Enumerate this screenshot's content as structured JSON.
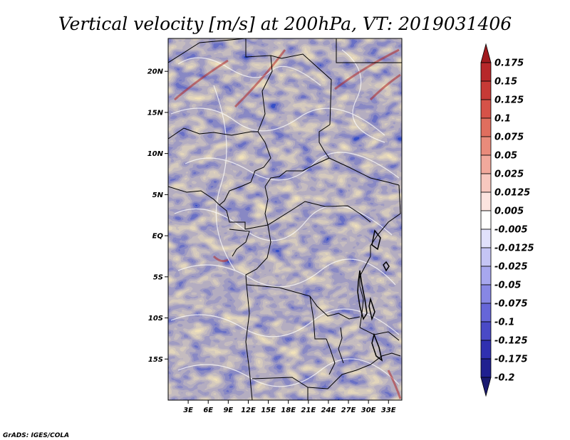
{
  "chart_data": {
    "type": "heatmap",
    "title": "Vertical velocity [m/s] at 200hPa, VT: 2019031406",
    "variable": "Vertical velocity",
    "units": "m/s",
    "level": "200hPa",
    "valid_time": "2019031406",
    "xlabel": "",
    "ylabel": "",
    "xlim": [
      0,
      35
    ],
    "ylim": [
      -20,
      24
    ],
    "x_ticks": [
      {
        "value": 3,
        "label": "3E"
      },
      {
        "value": 6,
        "label": "6E"
      },
      {
        "value": 9,
        "label": "9E"
      },
      {
        "value": 12,
        "label": "12E"
      },
      {
        "value": 15,
        "label": "15E"
      },
      {
        "value": 18,
        "label": "18E"
      },
      {
        "value": 21,
        "label": "21E"
      },
      {
        "value": 24,
        "label": "24E"
      },
      {
        "value": 27,
        "label": "27E"
      },
      {
        "value": 30,
        "label": "30E"
      },
      {
        "value": 33,
        "label": "33E"
      }
    ],
    "y_ticks": [
      {
        "value": 20,
        "label": "20N"
      },
      {
        "value": 15,
        "label": "15N"
      },
      {
        "value": 10,
        "label": "10N"
      },
      {
        "value": 5,
        "label": "5N"
      },
      {
        "value": 0,
        "label": "EQ"
      },
      {
        "value": -5,
        "label": "5S"
      },
      {
        "value": -10,
        "label": "10S"
      },
      {
        "value": -15,
        "label": "15S"
      }
    ],
    "colorbar": {
      "levels": [
        "0.175",
        "0.15",
        "0.125",
        "0.1",
        "0.075",
        "0.05",
        "0.025",
        "0.0125",
        "0.005",
        "-0.005",
        "-0.0125",
        "-0.025",
        "-0.05",
        "-0.075",
        "-0.1",
        "-0.125",
        "-0.175",
        "-0.2"
      ],
      "colors": [
        "#a01a1e",
        "#b7272a",
        "#c73a36",
        "#d65248",
        "#e06e5e",
        "#e98b7b",
        "#f1a99c",
        "#f7c8bf",
        "#fce4df",
        "#ffffff",
        "#e1e1fb",
        "#c5c5f5",
        "#a7a7ee",
        "#8787e4",
        "#6666d8",
        "#4a4ac6",
        "#3030b0",
        "#202090",
        "#1a1a70"
      ]
    }
  },
  "footer": {
    "credit": "GrADS: IGES/COLA"
  }
}
